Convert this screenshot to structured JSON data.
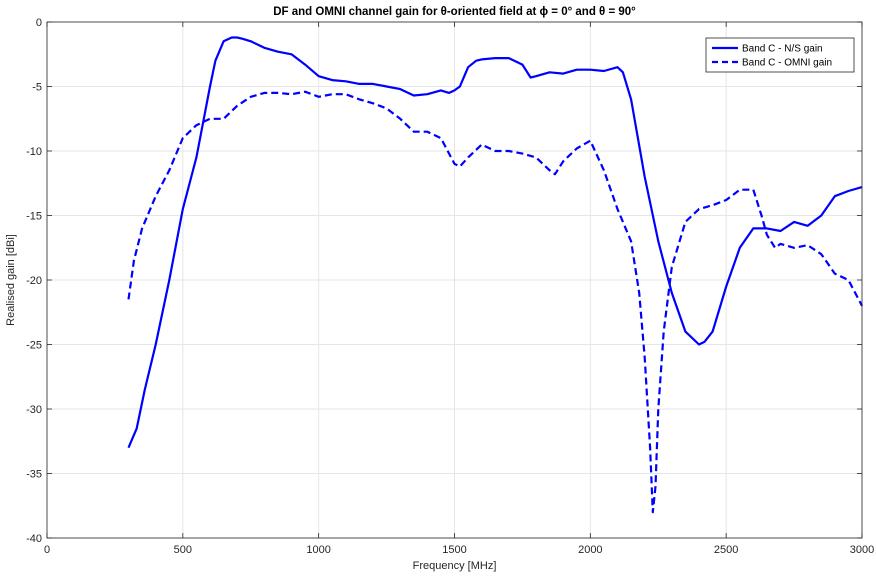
{
  "chart_data": {
    "type": "line",
    "title": "DF and OMNI channel gain for θ-oriented field at ϕ = 0° and θ = 90°",
    "xlabel": "Frequency [MHz]",
    "ylabel": "Realised gain [dBi]",
    "xlim": [
      0,
      3000
    ],
    "ylim": [
      -40,
      0
    ],
    "xticks": [
      0,
      500,
      1000,
      1500,
      2000,
      2500,
      3000
    ],
    "xtick_labels": [
      "0",
      "500",
      "1000",
      "1500",
      "2000",
      "2500",
      "3000"
    ],
    "yticks": [
      0,
      -5,
      -10,
      -15,
      -20,
      -25,
      -30,
      -35,
      -40
    ],
    "ytick_labels": [
      "0",
      "-5",
      "-10",
      "-15",
      "-20",
      "-25",
      "-30",
      "-35",
      "-40"
    ],
    "grid": true,
    "legend_position": "top-right",
    "colors": {
      "series": "#0000ff",
      "axis": "#262626",
      "grid": "#e6e6e6"
    },
    "series": [
      {
        "name": "Band C - N/S gain",
        "style": "solid",
        "x": [
          300,
          330,
          360,
          400,
          450,
          500,
          550,
          600,
          620,
          650,
          680,
          700,
          720,
          750,
          800,
          850,
          900,
          950,
          1000,
          1050,
          1100,
          1150,
          1200,
          1250,
          1300,
          1350,
          1400,
          1450,
          1480,
          1500,
          1520,
          1550,
          1580,
          1600,
          1650,
          1700,
          1750,
          1780,
          1800,
          1850,
          1900,
          1950,
          2000,
          2050,
          2100,
          2120,
          2150,
          2200,
          2250,
          2300,
          2350,
          2400,
          2420,
          2450,
          2500,
          2550,
          2600,
          2650,
          2700,
          2750,
          2800,
          2850,
          2900,
          2950,
          3000
        ],
        "values": [
          -33,
          -31.5,
          -28.5,
          -25,
          -20,
          -14.5,
          -10.5,
          -5,
          -3,
          -1.5,
          -1.2,
          -1.2,
          -1.3,
          -1.5,
          -2,
          -2.3,
          -2.5,
          -3.3,
          -4.2,
          -4.5,
          -4.6,
          -4.8,
          -4.8,
          -5,
          -5.2,
          -5.7,
          -5.6,
          -5.3,
          -5.5,
          -5.3,
          -5,
          -3.5,
          -3,
          -2.9,
          -2.8,
          -2.8,
          -3.3,
          -4.3,
          -4.2,
          -3.9,
          -4,
          -3.7,
          -3.7,
          -3.8,
          -3.5,
          -3.9,
          -6,
          -12,
          -17,
          -21,
          -24,
          -25,
          -24.8,
          -24,
          -20.5,
          -17.5,
          -16,
          -16,
          -16.2,
          -15.5,
          -15.8,
          -15,
          -13.5,
          -13.1,
          -12.8
        ]
      },
      {
        "name": "Band C - OMNI gain",
        "style": "dashed",
        "x": [
          300,
          320,
          350,
          400,
          450,
          500,
          550,
          600,
          650,
          700,
          750,
          800,
          850,
          900,
          950,
          1000,
          1050,
          1100,
          1150,
          1200,
          1250,
          1300,
          1350,
          1400,
          1450,
          1500,
          1520,
          1550,
          1600,
          1650,
          1700,
          1750,
          1800,
          1850,
          1870,
          1900,
          1950,
          2000,
          2050,
          2100,
          2150,
          2180,
          2200,
          2220,
          2230,
          2240,
          2250,
          2270,
          2300,
          2350,
          2400,
          2450,
          2500,
          2550,
          2600,
          2630,
          2650,
          2680,
          2700,
          2750,
          2800,
          2850,
          2900,
          2950,
          3000
        ],
        "values": [
          -21.5,
          -18.5,
          -16,
          -13.5,
          -11.5,
          -9,
          -8,
          -7.5,
          -7.5,
          -6.5,
          -5.8,
          -5.5,
          -5.5,
          -5.6,
          -5.4,
          -5.8,
          -5.6,
          -5.6,
          -6,
          -6.3,
          -6.7,
          -7.5,
          -8.5,
          -8.5,
          -9,
          -11,
          -11.2,
          -10.5,
          -9.5,
          -10,
          -10,
          -10.2,
          -10.5,
          -11.5,
          -11.8,
          -10.8,
          -9.8,
          -9.2,
          -11.5,
          -14.5,
          -17,
          -21,
          -26,
          -33,
          -38,
          -36,
          -30,
          -24,
          -19,
          -15.5,
          -14.5,
          -14.2,
          -13.8,
          -13,
          -13,
          -15,
          -16.5,
          -17.5,
          -17.2,
          -17.5,
          -17.3,
          -18,
          -19.5,
          -20,
          -22
        ]
      }
    ]
  }
}
